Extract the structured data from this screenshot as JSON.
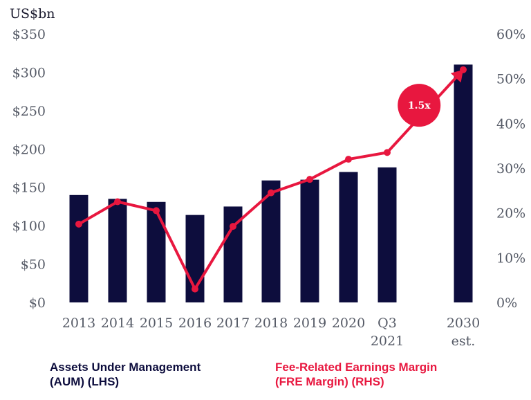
{
  "chart_data": {
    "type": "bar",
    "unit_label": "US$bn",
    "categories": [
      "2013",
      "2014",
      "2015",
      "2016",
      "2017",
      "2018",
      "2019",
      "2020",
      "Q3 2021",
      "2030 est."
    ],
    "category_lines": [
      [
        "2013"
      ],
      [
        "2014"
      ],
      [
        "2015"
      ],
      [
        "2016"
      ],
      [
        "2017"
      ],
      [
        "2018"
      ],
      [
        "2019"
      ],
      [
        "2020"
      ],
      [
        "Q3",
        "2021"
      ],
      [
        "2030",
        "est."
      ]
    ],
    "series": [
      {
        "name": "Assets Under Management (AUM) (LHS)",
        "type": "bar",
        "axis": "left",
        "color": "#0d0d3d",
        "values": [
          140,
          135,
          131,
          114,
          125,
          159,
          160,
          170,
          176,
          310
        ]
      },
      {
        "name": "Fee-Related Earnings Margin (FRE Margin) (RHS)",
        "type": "line",
        "axis": "right",
        "color": "#e8173f",
        "values": [
          17.5,
          22.5,
          20.5,
          3,
          17,
          24.5,
          27.5,
          32,
          33.5,
          52
        ]
      }
    ],
    "y_left": {
      "ylim": [
        0,
        350
      ],
      "ticks": [
        "$0",
        "$50",
        "$100",
        "$150",
        "$200",
        "$250",
        "$300",
        "$350"
      ]
    },
    "y_right": {
      "ylim": [
        0,
        60
      ],
      "ticks": [
        "0%",
        "10%",
        "20%",
        "30%",
        "40%",
        "50%",
        "60%"
      ]
    },
    "annotation": {
      "text": "1.5x",
      "color": "#e8173f"
    },
    "legend": [
      {
        "lines": [
          "Assets Under Management",
          "(AUM) (LHS)"
        ],
        "color": "#0d0d3d"
      },
      {
        "lines": [
          "Fee-Related Earnings Margin",
          "(FRE Margin) (RHS)"
        ],
        "color": "#e8173f"
      }
    ],
    "grid": false
  }
}
